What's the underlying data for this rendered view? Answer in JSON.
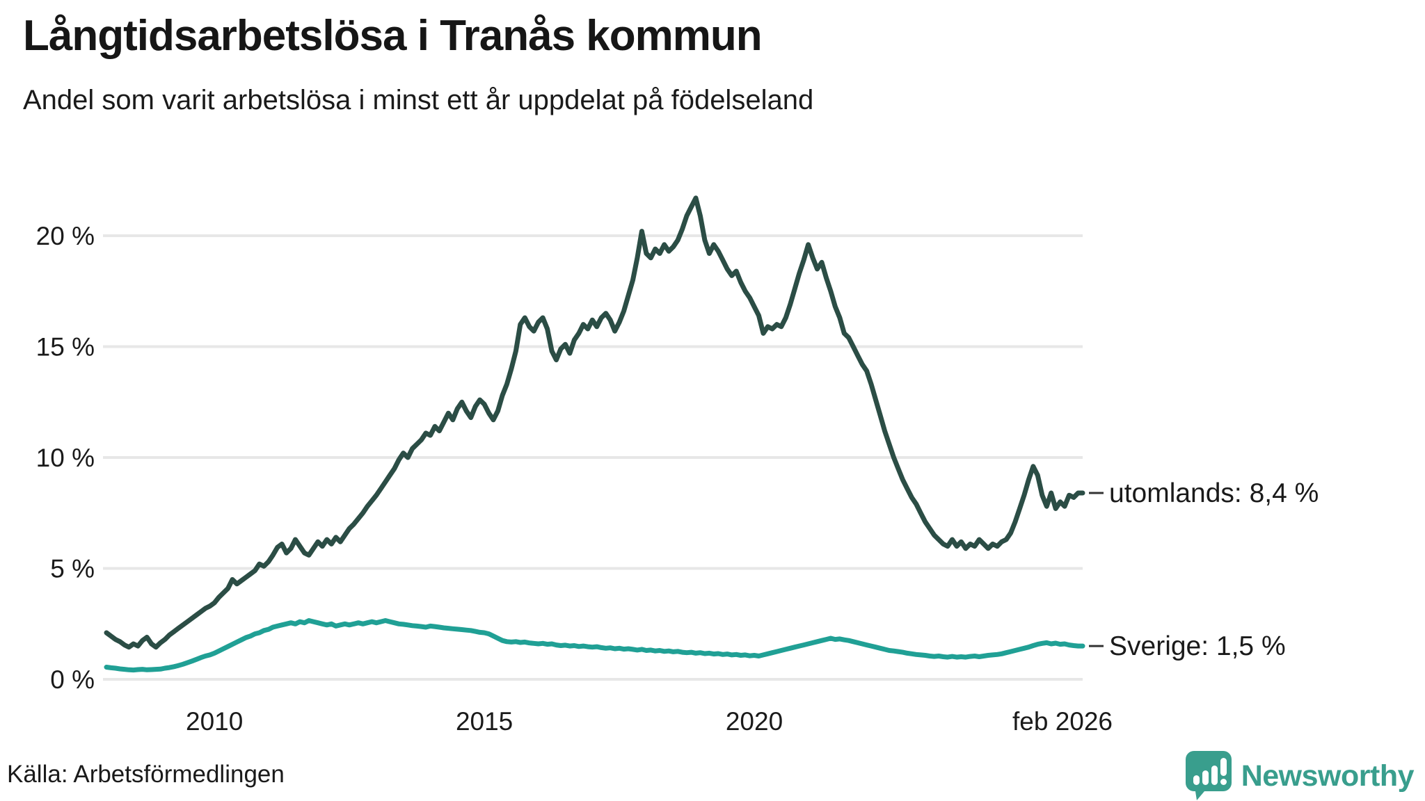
{
  "header": {
    "title": "Långtidsarbetslösa i Tranås kommun",
    "subtitle": "Andel som varit arbetslösa i minst ett år uppdelat på födelseland"
  },
  "footer": {
    "source": "Källa: Arbetsförmedlingen",
    "logo_text": "Newsworthy"
  },
  "colors": {
    "utomlands_line": "#2b4d45",
    "sverige_line": "#20a095",
    "grid": "#e7e7e7",
    "text": "#1a1a1a",
    "logo": "#399e8d"
  },
  "chart_data": {
    "type": "line",
    "title": "Långtidsarbetslösa i Tranås kommun",
    "subtitle": "Andel som varit arbetslösa i minst ett år uppdelat på födelseland",
    "unit": "%",
    "x_start": "2008-01",
    "x_end": "2026-02",
    "month_span": 217,
    "grid": true,
    "y_axis": {
      "ticks": [
        {
          "label": "0 %",
          "value": 0
        },
        {
          "label": "5 %",
          "value": 5
        },
        {
          "label": "10 %",
          "value": 10
        },
        {
          "label": "15 %",
          "value": 15
        },
        {
          "label": "20 %",
          "value": 20
        }
      ],
      "range": [
        0,
        22.5
      ]
    },
    "x_axis": {
      "ticks": [
        {
          "label": "2010",
          "month": 24,
          "dx": 0
        },
        {
          "label": "2015",
          "month": 84,
          "dx": 0
        },
        {
          "label": "2020",
          "month": 144,
          "dx": 0
        },
        {
          "label": "feb 2026",
          "month": 217,
          "dx": -29
        }
      ]
    },
    "series": [
      {
        "name": "utomlands",
        "label": "utomlands: 8,4 %",
        "last_value": 8.4,
        "color": "#2b4d45",
        "values": [
          2.1,
          1.95,
          1.8,
          1.7,
          1.55,
          1.45,
          1.6,
          1.5,
          1.75,
          1.9,
          1.6,
          1.45,
          1.65,
          1.8,
          2.0,
          2.15,
          2.3,
          2.45,
          2.6,
          2.75,
          2.9,
          3.05,
          3.2,
          3.3,
          3.45,
          3.7,
          3.9,
          4.1,
          4.5,
          4.3,
          4.45,
          4.6,
          4.75,
          4.9,
          5.2,
          5.1,
          5.3,
          5.6,
          5.95,
          6.1,
          5.7,
          5.9,
          6.3,
          6.0,
          5.7,
          5.6,
          5.9,
          6.2,
          6.0,
          6.3,
          6.1,
          6.4,
          6.2,
          6.5,
          6.8,
          7.0,
          7.25,
          7.5,
          7.8,
          8.05,
          8.3,
          8.6,
          8.9,
          9.2,
          9.5,
          9.9,
          10.2,
          10.0,
          10.4,
          10.6,
          10.8,
          11.1,
          11.0,
          11.4,
          11.2,
          11.6,
          12.0,
          11.7,
          12.2,
          12.5,
          12.1,
          11.8,
          12.3,
          12.6,
          12.4,
          12.0,
          11.7,
          12.1,
          12.8,
          13.3,
          14.0,
          14.8,
          16.0,
          16.3,
          15.9,
          15.7,
          16.1,
          16.3,
          15.8,
          14.8,
          14.4,
          14.9,
          15.1,
          14.7,
          15.3,
          15.6,
          16.0,
          15.8,
          16.2,
          15.9,
          16.3,
          16.5,
          16.2,
          15.7,
          16.1,
          16.6,
          17.3,
          18.0,
          19.0,
          20.2,
          19.2,
          19.0,
          19.4,
          19.2,
          19.6,
          19.3,
          19.5,
          19.8,
          20.3,
          20.9,
          21.3,
          21.7,
          20.9,
          19.8,
          19.2,
          19.6,
          19.3,
          18.9,
          18.5,
          18.2,
          18.4,
          17.9,
          17.5,
          17.2,
          16.8,
          16.4,
          15.6,
          15.9,
          15.8,
          16.0,
          15.9,
          16.3,
          16.9,
          17.6,
          18.3,
          18.9,
          19.6,
          19.0,
          18.5,
          18.8,
          18.1,
          17.5,
          16.8,
          16.3,
          15.6,
          15.4,
          15.0,
          14.6,
          14.2,
          13.9,
          13.3,
          12.6,
          11.9,
          11.2,
          10.6,
          10.0,
          9.5,
          9.0,
          8.6,
          8.2,
          7.9,
          7.5,
          7.1,
          6.8,
          6.5,
          6.3,
          6.1,
          6.0,
          6.3,
          6.0,
          6.2,
          5.9,
          6.1,
          6.0,
          6.3,
          6.1,
          5.9,
          6.1,
          6.0,
          6.2,
          6.3,
          6.6,
          7.1,
          7.7,
          8.3,
          9.0,
          9.6,
          9.2,
          8.3,
          7.8,
          8.4,
          7.7,
          8.0,
          7.8,
          8.3,
          8.2,
          8.4,
          8.4
        ]
      },
      {
        "name": "Sverige",
        "label": "Sverige: 1,5 %",
        "last_value": 1.5,
        "color": "#20a095",
        "values": [
          0.55,
          0.52,
          0.5,
          0.47,
          0.45,
          0.43,
          0.42,
          0.44,
          0.45,
          0.43,
          0.44,
          0.45,
          0.46,
          0.5,
          0.53,
          0.57,
          0.62,
          0.68,
          0.75,
          0.82,
          0.9,
          0.98,
          1.05,
          1.1,
          1.18,
          1.28,
          1.38,
          1.48,
          1.58,
          1.68,
          1.78,
          1.88,
          1.95,
          2.05,
          2.1,
          2.2,
          2.25,
          2.35,
          2.4,
          2.45,
          2.5,
          2.55,
          2.5,
          2.6,
          2.55,
          2.65,
          2.6,
          2.55,
          2.5,
          2.45,
          2.5,
          2.4,
          2.45,
          2.5,
          2.45,
          2.5,
          2.55,
          2.5,
          2.55,
          2.6,
          2.55,
          2.6,
          2.65,
          2.6,
          2.55,
          2.5,
          2.48,
          2.45,
          2.42,
          2.4,
          2.38,
          2.35,
          2.4,
          2.38,
          2.35,
          2.32,
          2.3,
          2.28,
          2.26,
          2.24,
          2.22,
          2.2,
          2.16,
          2.12,
          2.1,
          2.05,
          1.95,
          1.85,
          1.75,
          1.7,
          1.68,
          1.7,
          1.66,
          1.68,
          1.64,
          1.62,
          1.6,
          1.62,
          1.58,
          1.6,
          1.55,
          1.52,
          1.54,
          1.5,
          1.52,
          1.48,
          1.5,
          1.47,
          1.45,
          1.47,
          1.43,
          1.4,
          1.42,
          1.38,
          1.4,
          1.36,
          1.38,
          1.35,
          1.32,
          1.35,
          1.3,
          1.32,
          1.28,
          1.3,
          1.26,
          1.28,
          1.24,
          1.26,
          1.22,
          1.2,
          1.22,
          1.18,
          1.2,
          1.16,
          1.18,
          1.14,
          1.16,
          1.12,
          1.14,
          1.1,
          1.12,
          1.08,
          1.1,
          1.06,
          1.08,
          1.05,
          1.1,
          1.15,
          1.2,
          1.25,
          1.3,
          1.35,
          1.4,
          1.45,
          1.5,
          1.55,
          1.6,
          1.65,
          1.7,
          1.75,
          1.8,
          1.85,
          1.8,
          1.82,
          1.78,
          1.75,
          1.7,
          1.65,
          1.6,
          1.55,
          1.5,
          1.45,
          1.4,
          1.35,
          1.3,
          1.28,
          1.25,
          1.22,
          1.18,
          1.15,
          1.12,
          1.1,
          1.08,
          1.05,
          1.03,
          1.05,
          1.02,
          1.0,
          1.03,
          1.0,
          1.02,
          1.0,
          1.03,
          1.05,
          1.02,
          1.05,
          1.08,
          1.1,
          1.12,
          1.15,
          1.2,
          1.25,
          1.3,
          1.35,
          1.4,
          1.45,
          1.52,
          1.58,
          1.62,
          1.65,
          1.6,
          1.63,
          1.58,
          1.6,
          1.55,
          1.52,
          1.5,
          1.5
        ]
      }
    ]
  }
}
